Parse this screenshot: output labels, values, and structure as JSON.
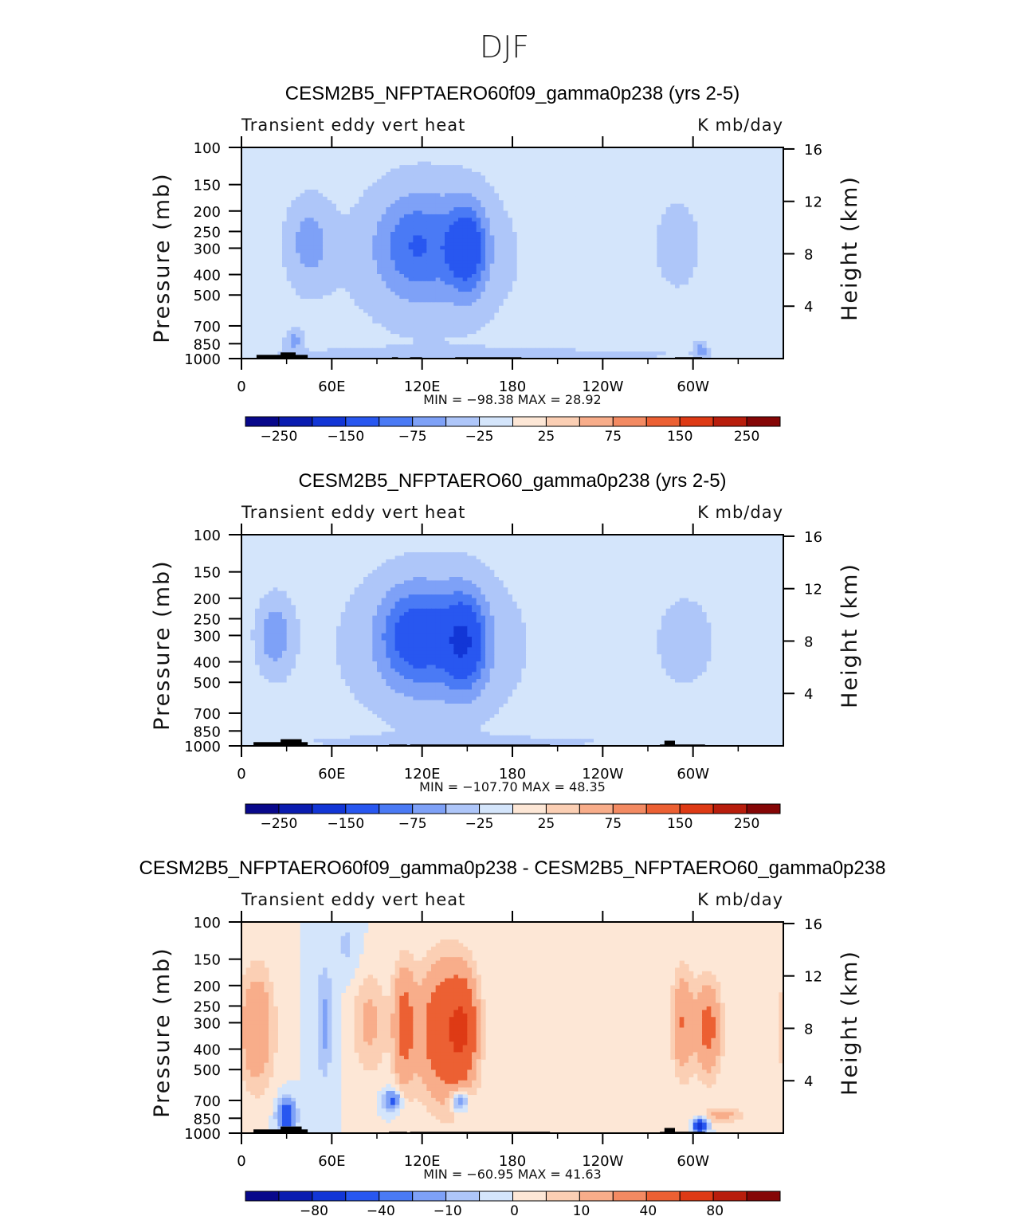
{
  "figure_title": "DJF",
  "palettes": {
    "main": [
      "#08088b",
      "#0a1cb0",
      "#1236d6",
      "#2857f0",
      "#4a7af5",
      "#7ea1f7",
      "#aec6f9",
      "#d4e5fb",
      "#fde7d6",
      "#fbcfb4",
      "#f8ad8a",
      "#f38a62",
      "#ec6033",
      "#de3a15",
      "#b81d0c",
      "#850606"
    ],
    "diff": [
      "#08088b",
      "#0a1cb0",
      "#1236d6",
      "#2857f0",
      "#4a7af5",
      "#7ea1f7",
      "#aec6f9",
      "#d4e5fb",
      "#fde7d6",
      "#fbcfb4",
      "#f8ad8a",
      "#f38a62",
      "#ec6033",
      "#de3a15",
      "#b81d0c",
      "#850606"
    ]
  },
  "chart_data": [
    {
      "type": "heatmap",
      "title": "CESM2B5_NFPTAERO60f09_gamma0p238 (yrs 2-5)",
      "left_label": "Transient eddy vert heat",
      "right_label": "K mb/day",
      "ylabel": "Pressure (mb)",
      "y2label": "Height (km)",
      "yticks": [
        "100",
        "150",
        "200",
        "250",
        "300",
        "400",
        "500",
        "700",
        "850",
        "1000"
      ],
      "y2ticks": [
        "16",
        "12",
        "8",
        "4"
      ],
      "xticks": [
        "0",
        "60E",
        "120E",
        "180",
        "120W",
        "60W"
      ],
      "stats": "MIN =  −98.38   MAX =   28.92",
      "colorbar": {
        "labels": [
          "−250",
          "−150",
          "−75",
          "−25",
          "25",
          "75",
          "150",
          "250"
        ]
      },
      "blobs": [
        {
          "lon": 45,
          "p": 280,
          "w": 10,
          "h": 0.32,
          "amp": -45
        },
        {
          "lon": 115,
          "p": 290,
          "w": 18,
          "h": 0.38,
          "amp": -55
        },
        {
          "lon": 150,
          "p": 300,
          "w": 9,
          "h": 0.33,
          "amp": -95
        },
        {
          "lon": 130,
          "p": 300,
          "w": 28,
          "h": 0.55,
          "amp": -25
        },
        {
          "lon": 290,
          "p": 290,
          "w": 10,
          "h": 0.33,
          "amp": -40
        },
        {
          "lon": 120,
          "p": 350,
          "w": 80,
          "h": 0.85,
          "amp": -18
        },
        {
          "lon": 35,
          "p": 820,
          "w": 4,
          "h": 0.08,
          "amp": -45
        },
        {
          "lon": 305,
          "p": 900,
          "w": 3,
          "h": 0.06,
          "amp": -55
        },
        {
          "lon": 180,
          "p": 960,
          "w": 160,
          "h": 0.06,
          "amp": -20
        }
      ],
      "topo": [
        {
          "lon0": 10,
          "lon1": 44,
          "p": 960
        },
        {
          "lon0": 26,
          "lon1": 36,
          "p": 935
        },
        {
          "lon0": 100,
          "lon1": 104,
          "p": 985
        },
        {
          "lon0": 112,
          "lon1": 120,
          "p": 985
        },
        {
          "lon0": 142,
          "lon1": 186,
          "p": 985
        },
        {
          "lon0": 288,
          "lon1": 306,
          "p": 985
        }
      ]
    },
    {
      "type": "heatmap",
      "title": "CESM2B5_NFPTAERO60_gamma0p238 (yrs 2-5)",
      "left_label": "Transient eddy vert heat",
      "right_label": "K mb/day",
      "ylabel": "Pressure (mb)",
      "y2label": "Height (km)",
      "yticks": [
        "100",
        "150",
        "200",
        "250",
        "300",
        "400",
        "500",
        "700",
        "850",
        "1000"
      ],
      "y2ticks": [
        "16",
        "12",
        "8",
        "4"
      ],
      "xticks": [
        "0",
        "60E",
        "120E",
        "180",
        "120W",
        "60W"
      ],
      "stats": "MIN =  −107.70   MAX =   48.35",
      "colorbar": {
        "labels": [
          "−250",
          "−150",
          "−75",
          "−25",
          "25",
          "75",
          "150",
          "250"
        ]
      },
      "blobs": [
        {
          "lon": 22,
          "p": 300,
          "w": 8,
          "h": 0.28,
          "amp": -55
        },
        {
          "lon": 115,
          "p": 300,
          "w": 16,
          "h": 0.35,
          "amp": -75
        },
        {
          "lon": 148,
          "p": 320,
          "w": 10,
          "h": 0.35,
          "amp": -100
        },
        {
          "lon": 130,
          "p": 320,
          "w": 30,
          "h": 0.55,
          "amp": -35
        },
        {
          "lon": 295,
          "p": 320,
          "w": 15,
          "h": 0.4,
          "amp": -30
        },
        {
          "lon": 120,
          "p": 350,
          "w": 80,
          "h": 0.85,
          "amp": -18
        },
        {
          "lon": 180,
          "p": 960,
          "w": 170,
          "h": 0.06,
          "amp": -15
        }
      ],
      "topo": [
        {
          "lon0": 8,
          "lon1": 44,
          "p": 960
        },
        {
          "lon0": 26,
          "lon1": 40,
          "p": 930
        },
        {
          "lon0": 98,
          "lon1": 110,
          "p": 985
        },
        {
          "lon0": 112,
          "lon1": 205,
          "p": 985
        },
        {
          "lon0": 278,
          "lon1": 308,
          "p": 985
        },
        {
          "lon0": 281,
          "lon1": 288,
          "p": 945
        }
      ]
    },
    {
      "type": "heatmap",
      "title": "CESM2B5_NFPTAERO60f09_gamma0p238 - CESM2B5_NFPTAERO60_gamma0p238",
      "left_label": "Transient eddy vert heat",
      "right_label": "K mb/day",
      "ylabel": "Pressure (mb)",
      "y2label": "Height (km)",
      "yticks": [
        "100",
        "150",
        "200",
        "250",
        "300",
        "400",
        "500",
        "700",
        "850",
        "1000"
      ],
      "y2ticks": [
        "16",
        "12",
        "8",
        "4"
      ],
      "xticks": [
        "0",
        "60E",
        "120E",
        "180",
        "120W",
        "60W"
      ],
      "stats": "MIN =  −60.95   MAX =   41.63",
      "colorbar": {
        "labels": [
          "−80",
          "−40",
          "−10",
          "0",
          "10",
          "40",
          "80"
        ]
      },
      "blobs": [
        {
          "lon": 10,
          "p": 320,
          "w": 8,
          "h": 0.45,
          "amp": 20
        },
        {
          "lon": 85,
          "p": 300,
          "w": 8,
          "h": 0.4,
          "amp": 12
        },
        {
          "lon": 108,
          "p": 310,
          "w": 5,
          "h": 0.45,
          "amp": 25
        },
        {
          "lon": 135,
          "p": 330,
          "w": 12,
          "h": 0.5,
          "amp": 35
        },
        {
          "lon": 148,
          "p": 320,
          "w": 6,
          "h": 0.4,
          "amp": 25
        },
        {
          "lon": 293,
          "p": 300,
          "w": 5,
          "h": 0.4,
          "amp": 20
        },
        {
          "lon": 310,
          "p": 320,
          "w": 6,
          "h": 0.35,
          "amp": 25
        },
        {
          "lon": 55,
          "p": 300,
          "w": 4,
          "h": 0.45,
          "amp": -12
        },
        {
          "lon": 30,
          "p": 820,
          "w": 4,
          "h": 0.12,
          "amp": -35
        },
        {
          "lon": 100,
          "p": 700,
          "w": 4,
          "h": 0.08,
          "amp": -25
        },
        {
          "lon": 145,
          "p": 700,
          "w": 4,
          "h": 0.08,
          "amp": -25
        },
        {
          "lon": 305,
          "p": 920,
          "w": 3,
          "h": 0.05,
          "amp": -50
        },
        {
          "lon": 320,
          "p": 820,
          "w": 10,
          "h": 0.06,
          "amp": 12
        },
        {
          "lon": 70,
          "p": 130,
          "w": 6,
          "h": 0.25,
          "amp": -6
        }
      ],
      "topo": [
        {
          "lon0": 8,
          "lon1": 44,
          "p": 960
        },
        {
          "lon0": 26,
          "lon1": 40,
          "p": 930
        },
        {
          "lon0": 98,
          "lon1": 110,
          "p": 985
        },
        {
          "lon0": 112,
          "lon1": 205,
          "p": 985
        },
        {
          "lon0": 278,
          "lon1": 308,
          "p": 985
        },
        {
          "lon0": 281,
          "lon1": 288,
          "p": 945
        }
      ]
    }
  ]
}
